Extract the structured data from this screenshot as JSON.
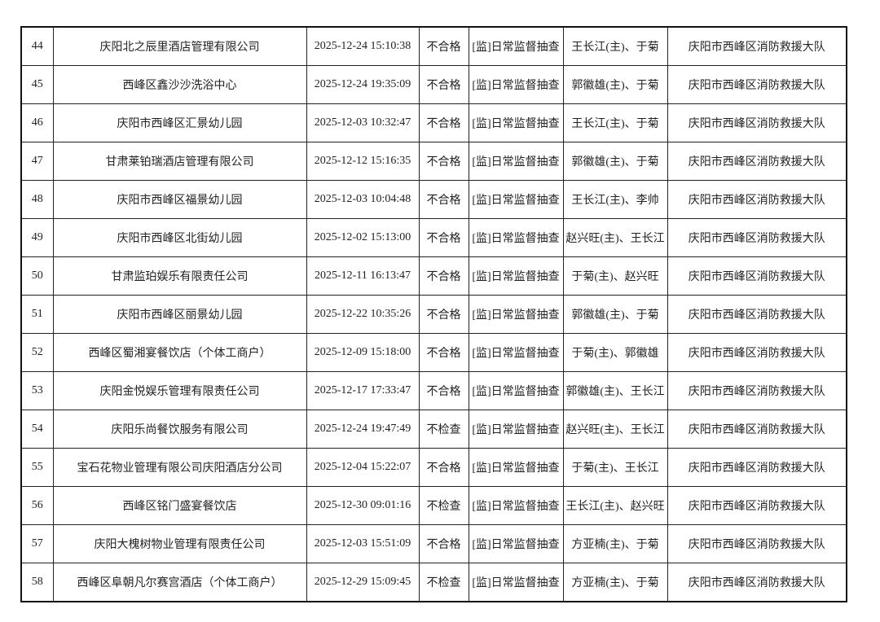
{
  "table": {
    "rows": [
      [
        "44",
        "庆阳北之辰里酒店管理有限公司",
        "2025-12-24 15:10:38",
        "不合格",
        "[监]日常监督抽查",
        "王长江(主)、于菊",
        "庆阳市西峰区消防救援大队"
      ],
      [
        "45",
        "西峰区鑫沙沙洗浴中心",
        "2025-12-24 19:35:09",
        "不合格",
        "[监]日常监督抽查",
        "郭徽雄(主)、于菊",
        "庆阳市西峰区消防救援大队"
      ],
      [
        "46",
        "庆阳市西峰区汇景幼儿园",
        "2025-12-03 10:32:47",
        "不合格",
        "[监]日常监督抽查",
        "王长江(主)、于菊",
        "庆阳市西峰区消防救援大队"
      ],
      [
        "47",
        "甘肃莱铂瑞酒店管理有限公司",
        "2025-12-12 15:16:35",
        "不合格",
        "[监]日常监督抽查",
        "郭徽雄(主)、于菊",
        "庆阳市西峰区消防救援大队"
      ],
      [
        "48",
        "庆阳市西峰区福景幼儿园",
        "2025-12-03 10:04:48",
        "不合格",
        "[监]日常监督抽查",
        "王长江(主)、李帅",
        "庆阳市西峰区消防救援大队"
      ],
      [
        "49",
        "庆阳市西峰区北街幼儿园",
        "2025-12-02 15:13:00",
        "不合格",
        "[监]日常监督抽查",
        "赵兴旺(主)、王长江",
        "庆阳市西峰区消防救援大队"
      ],
      [
        "50",
        "甘肃监珀娱乐有限责任公司",
        "2025-12-11 16:13:47",
        "不合格",
        "[监]日常监督抽查",
        "于菊(主)、赵兴旺",
        "庆阳市西峰区消防救援大队"
      ],
      [
        "51",
        "庆阳市西峰区丽景幼儿园",
        "2025-12-22 10:35:26",
        "不合格",
        "[监]日常监督抽查",
        "郭徽雄(主)、于菊",
        "庆阳市西峰区消防救援大队"
      ],
      [
        "52",
        "西峰区蜀湘宴餐饮店（个体工商户）",
        "2025-12-09 15:18:00",
        "不合格",
        "[监]日常监督抽查",
        "于菊(主)、郭徽雄",
        "庆阳市西峰区消防救援大队"
      ],
      [
        "53",
        "庆阳金悦娱乐管理有限责任公司",
        "2025-12-17 17:33:47",
        "不合格",
        "[监]日常监督抽查",
        "郭徽雄(主)、王长江",
        "庆阳市西峰区消防救援大队"
      ],
      [
        "54",
        "庆阳乐尚餐饮服务有限公司",
        "2025-12-24 19:47:49",
        "不检查",
        "[监]日常监督抽查",
        "赵兴旺(主)、王长江",
        "庆阳市西峰区消防救援大队"
      ],
      [
        "55",
        "宝石花物业管理有限公司庆阳酒店分公司",
        "2025-12-04 15:22:07",
        "不合格",
        "[监]日常监督抽查",
        "于菊(主)、王长江",
        "庆阳市西峰区消防救援大队"
      ],
      [
        "56",
        "西峰区铭门盛宴餐饮店",
        "2025-12-30 09:01:16",
        "不检查",
        "[监]日常监督抽查",
        "王长江(主)、赵兴旺",
        "庆阳市西峰区消防救援大队"
      ],
      [
        "57",
        "庆阳大槐树物业管理有限责任公司",
        "2025-12-03 15:51:09",
        "不合格",
        "[监]日常监督抽查",
        "方亚楠(主)、于菊",
        "庆阳市西峰区消防救援大队"
      ],
      [
        "58",
        "西峰区阜朝凡尔赛宫酒店（个体工商户）",
        "2025-12-29 15:09:45",
        "不检查",
        "[监]日常监督抽查",
        "方亚楠(主)、于菊",
        "庆阳市西峰区消防救援大队"
      ]
    ]
  }
}
